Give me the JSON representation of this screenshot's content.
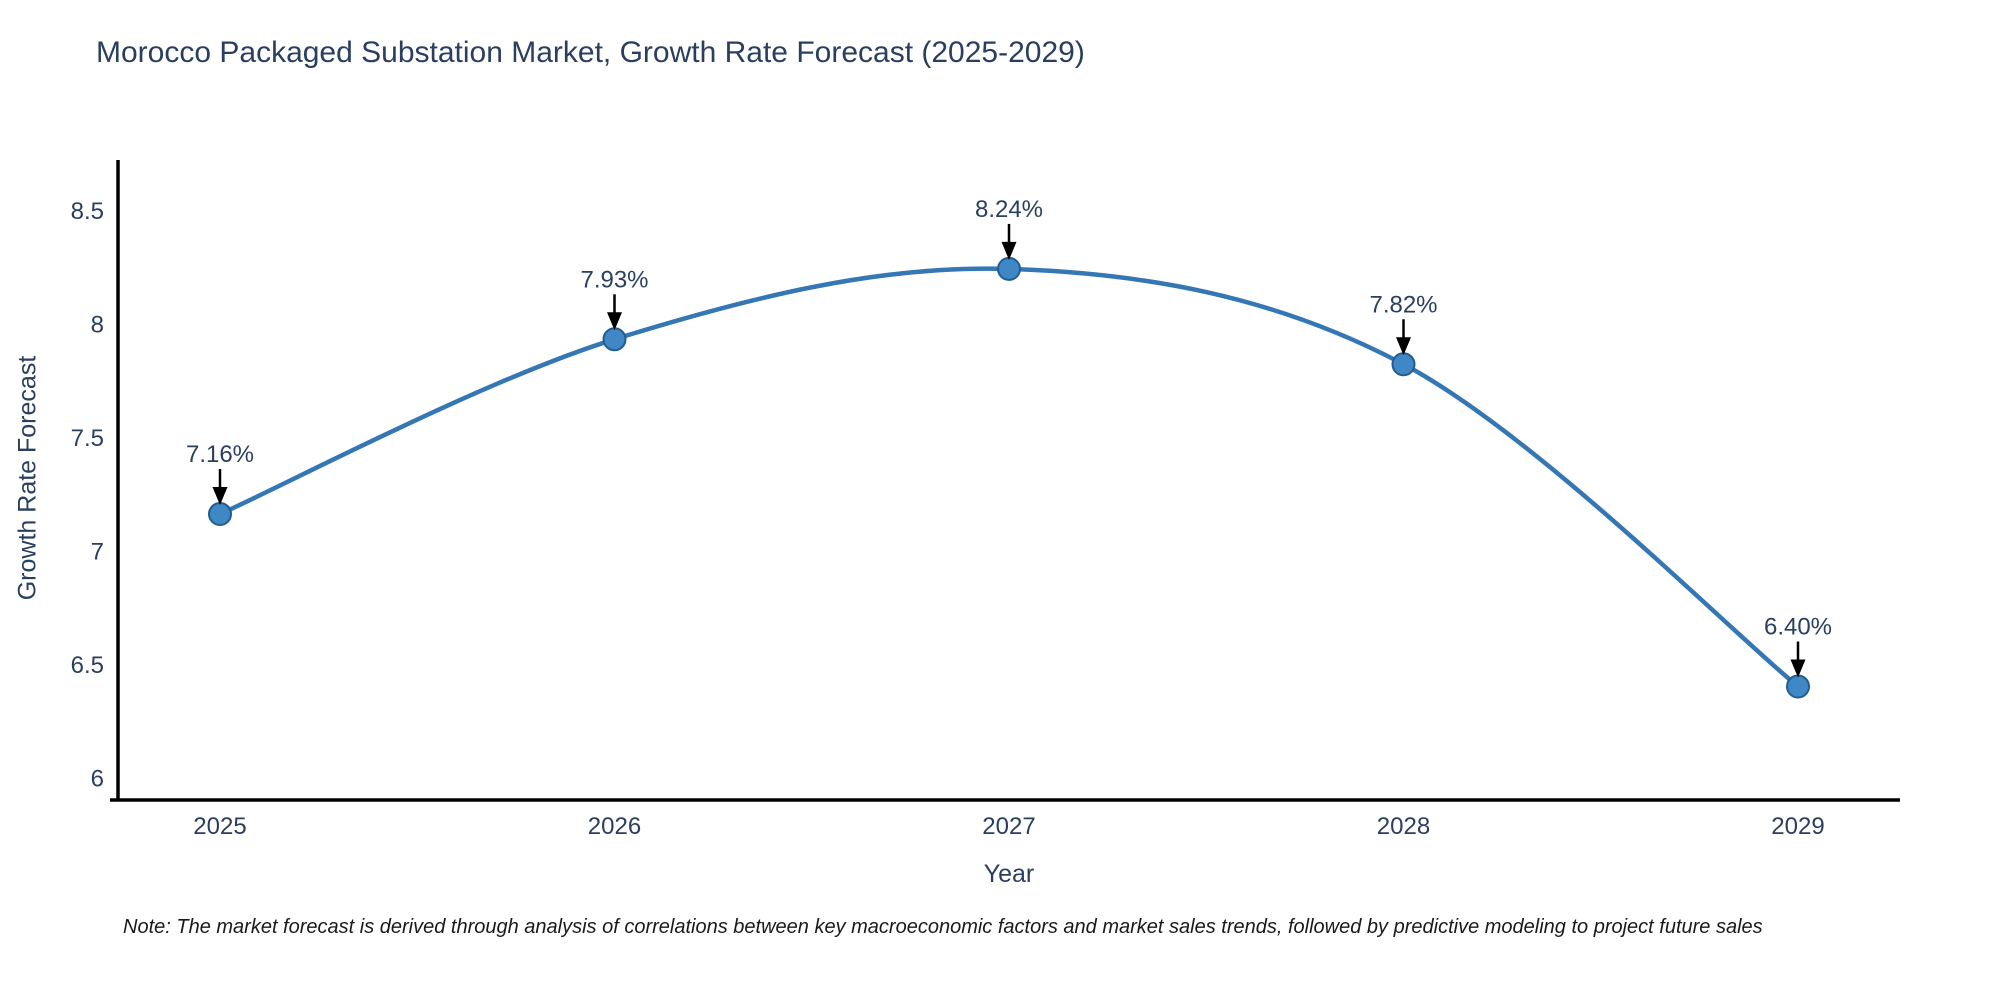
{
  "page": {
    "background": "#ffffff"
  },
  "chart_data": {
    "type": "line",
    "title": "Morocco Packaged Substation Market, Growth Rate Forecast (2025-2029)",
    "xlabel": "Year",
    "ylabel": "Growth Rate Forecast",
    "categories": [
      "2025",
      "2026",
      "2027",
      "2028",
      "2029"
    ],
    "values": [
      7.16,
      7.93,
      8.24,
      7.82,
      6.4
    ],
    "point_labels": [
      "7.16%",
      "7.93%",
      "8.24%",
      "7.82%",
      "6.40%"
    ],
    "yticks": [
      6,
      6.5,
      7,
      7.5,
      8,
      8.5
    ],
    "ylim": [
      5.9,
      8.72
    ],
    "grid": false,
    "legend": "none",
    "smooth": true,
    "line_color": "#3577b4",
    "marker_color": "#3f87c5",
    "marker_edge_color": "#235d8f",
    "axis_color": "#000000",
    "tick_label_color": "#2a3f5f",
    "annotation_text_color": "#2a3f5f",
    "annotation_arrow_color": "#000000"
  },
  "note": {
    "text": "Note: The market forecast is derived through analysis of correlations between key macroeconomic factors and market sales trends, followed by predictive modeling to project future sales"
  }
}
